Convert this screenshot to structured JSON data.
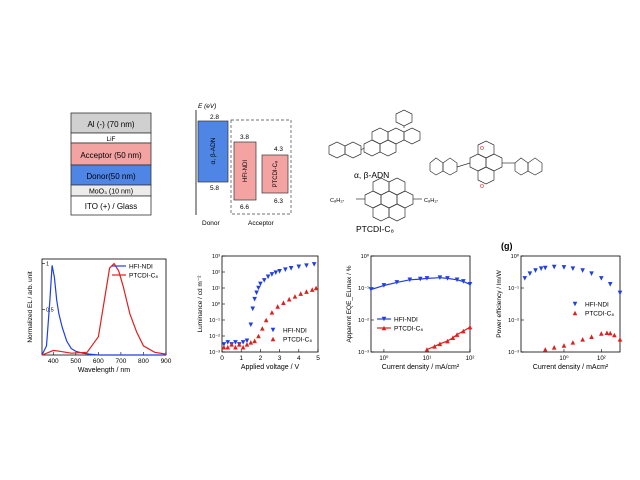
{
  "device_stack": {
    "layers": [
      {
        "label": "Al (-) (70 nm)",
        "color": "#d0d0d0"
      },
      {
        "label": "LiF",
        "color": "#ffffff"
      },
      {
        "label": "Acceptor (50 nm)",
        "color": "#f4a3a3"
      },
      {
        "label": "Donor(50 nm)",
        "color": "#4f86e6"
      },
      {
        "label": "MoO₃ (10 nm)",
        "color": "#ececec"
      },
      {
        "label": "ITO (+) / Glass",
        "color": "#ffffff"
      }
    ]
  },
  "energy_diagram": {
    "axis_label": "E (eV)",
    "donor": {
      "name": "α, β-ADN",
      "lumo": "2.8",
      "homo": "5.8",
      "caption": "Donor",
      "color": "#4f86e6"
    },
    "acceptors": [
      {
        "name": "HFI-NDI",
        "lumo": "3.8",
        "homo": "6.6",
        "color": "#f4a3a3"
      },
      {
        "name": "PTCDI-C₈",
        "lumo": "4.3",
        "homo": "6.3",
        "color": "#f4a3a3"
      }
    ],
    "acceptor_caption": "Acceptor"
  },
  "molecules": {
    "adn": "α, β-ADN",
    "ptcdi": "PTCDI-C₈",
    "c8_left": "C₈H₁₇",
    "c8_right": "C₈H₁₇"
  },
  "panel_label_g": "(g)",
  "chart_data": [
    {
      "type": "line",
      "xlabel": "Wavelength / nm",
      "ylabel": "Normalized EL / arb. unit",
      "xlim": [
        350,
        900
      ],
      "ylim": [
        0,
        1.05
      ],
      "xticks": [
        "400",
        "500",
        "600",
        "700",
        "800",
        "900"
      ],
      "yticks": [
        "1",
        "0.5"
      ],
      "legend": "top-right",
      "series": [
        {
          "name": "HFI-NDI",
          "color": "#1f3fe0",
          "x": [
            350,
            370,
            385,
            395,
            405,
            415,
            425,
            440,
            460,
            480,
            500,
            530,
            560,
            600,
            650,
            700,
            800,
            900
          ],
          "y": [
            0.0,
            0.1,
            0.6,
            0.98,
            0.85,
            0.6,
            0.45,
            0.3,
            0.15,
            0.07,
            0.04,
            0.02,
            0.01,
            0.0,
            0.0,
            0.0,
            0.0,
            0.0
          ]
        },
        {
          "name": "PTCDI-C₈",
          "color": "#e01f1f",
          "x": [
            350,
            380,
            400,
            430,
            480,
            550,
            600,
            630,
            650,
            670,
            690,
            710,
            740,
            770,
            800,
            850,
            900
          ],
          "y": [
            0.0,
            0.03,
            0.05,
            0.04,
            0.02,
            0.03,
            0.2,
            0.65,
            0.95,
            1.0,
            0.92,
            0.75,
            0.45,
            0.25,
            0.1,
            0.03,
            0.01
          ]
        }
      ]
    },
    {
      "type": "scatter",
      "xlabel": "Applied voltage / V",
      "ylabel": "Luminance / cd m⁻²",
      "xlim": [
        0,
        5
      ],
      "ylim_log": [
        -3,
        3
      ],
      "xticks": [
        "0",
        "1",
        "2",
        "3",
        "4",
        "5"
      ],
      "ytick_exponents": [
        -3,
        -2,
        -1,
        0,
        1,
        2,
        3
      ],
      "legend": "bottom-right",
      "series": [
        {
          "name": "HFI-NDI",
          "color": "#1f3fe0",
          "marker": "triangle-down",
          "x": [
            0.1,
            0.3,
            0.5,
            0.7,
            0.9,
            1.1,
            1.3,
            1.5,
            1.6,
            1.7,
            1.8,
            1.9,
            2.0,
            2.2,
            2.4,
            2.6,
            2.8,
            3.0,
            3.3,
            3.6,
            4.0,
            4.4,
            4.8
          ],
          "y": [
            0.003,
            0.004,
            0.003,
            0.004,
            0.003,
            0.004,
            0.005,
            0.05,
            0.5,
            2,
            5,
            10,
            18,
            30,
            50,
            70,
            90,
            110,
            140,
            170,
            210,
            250,
            300
          ]
        },
        {
          "name": "PTCDI-C₈",
          "color": "#e01f1f",
          "marker": "triangle-up",
          "x": [
            0.1,
            0.3,
            0.5,
            0.7,
            0.9,
            1.1,
            1.3,
            1.5,
            1.7,
            1.9,
            2.1,
            2.3,
            2.6,
            2.9,
            3.2,
            3.5,
            3.8,
            4.1,
            4.4,
            4.7,
            4.9
          ],
          "y": [
            0.002,
            0.002,
            0.003,
            0.002,
            0.003,
            0.002,
            0.003,
            0.004,
            0.005,
            0.01,
            0.03,
            0.1,
            0.3,
            0.7,
            1.2,
            2,
            3,
            4.5,
            6,
            8,
            10
          ]
        }
      ]
    },
    {
      "type": "line",
      "xlabel": "Current density / mA/cm²",
      "ylabel": "Apparent EQE_ELmax / %",
      "xlim_log": [
        -0.3,
        2
      ],
      "ylim_log": [
        -3,
        0
      ],
      "xtick_exponents": [
        0,
        1,
        2
      ],
      "ytick_exponents": [
        -3,
        -2,
        -1,
        0
      ],
      "legend": "bottom-left",
      "series": [
        {
          "name": "HFI-NDI",
          "color": "#1f3fe0",
          "marker": "triangle-down",
          "x": [
            0.5,
            1,
            2,
            4,
            7,
            10,
            20,
            30,
            50,
            70,
            100
          ],
          "y": [
            0.09,
            0.12,
            0.15,
            0.18,
            0.19,
            0.2,
            0.21,
            0.2,
            0.18,
            0.16,
            0.13
          ]
        },
        {
          "name": "PTCDI-C₈",
          "color": "#e01f1f",
          "marker": "triangle-up",
          "x": [
            10,
            15,
            20,
            30,
            40,
            50,
            70,
            100
          ],
          "y": [
            0.0012,
            0.0015,
            0.0018,
            0.0022,
            0.0028,
            0.0035,
            0.0045,
            0.006
          ]
        }
      ]
    },
    {
      "type": "scatter",
      "xlabel": "Current density / mAcm²",
      "ylabel": "Power efficiency / lm/W",
      "xlim_log": [
        -2.3,
        3
      ],
      "ylim_log": [
        -3,
        0
      ],
      "xtick_exponents": [
        0,
        2
      ],
      "ytick_exponents": [
        -3,
        -2,
        -1,
        0
      ],
      "legend": "right",
      "series": [
        {
          "name": "HFI-NDI",
          "color": "#1f3fe0",
          "marker": "triangle-down",
          "x": [
            0.008,
            0.015,
            0.03,
            0.06,
            0.1,
            0.3,
            1,
            3,
            10,
            30,
            100,
            300,
            1000
          ],
          "y": [
            0.2,
            0.28,
            0.35,
            0.4,
            0.42,
            0.45,
            0.44,
            0.4,
            0.35,
            0.28,
            0.2,
            0.13,
            0.07
          ]
        },
        {
          "name": "PTCDI-C₈",
          "color": "#e01f1f",
          "marker": "triangle-up",
          "x": [
            0.1,
            0.3,
            1,
            3,
            10,
            30,
            100,
            200,
            300,
            500,
            1000
          ],
          "y": [
            0.0012,
            0.0014,
            0.0016,
            0.002,
            0.0025,
            0.003,
            0.0038,
            0.004,
            0.0039,
            0.0034,
            0.0025
          ]
        }
      ]
    }
  ]
}
